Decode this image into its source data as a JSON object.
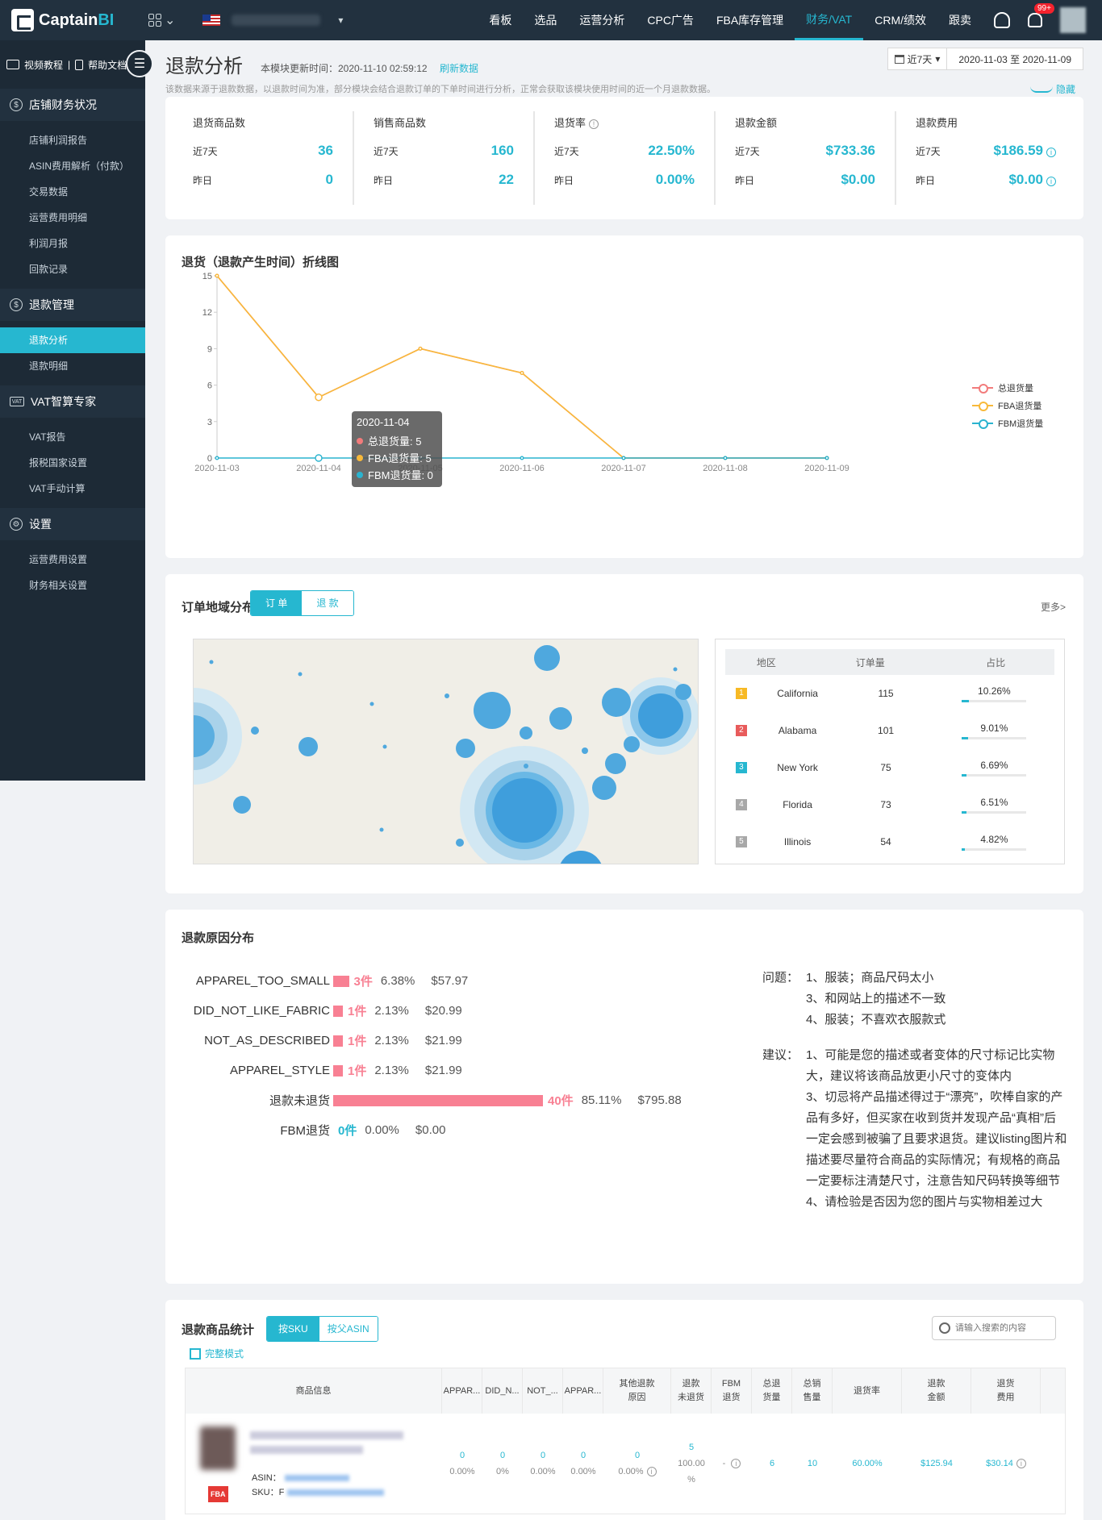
{
  "brand": {
    "name_a": "Captain",
    "name_b": "BI"
  },
  "topnav": {
    "items": [
      "看板",
      "选品",
      "运营分析",
      "CPC广告",
      "FBA库存管理",
      "财务/VAT",
      "CRM/绩效",
      "跟卖"
    ],
    "active": "财务/VAT",
    "badge": "99+"
  },
  "sidebar": {
    "video": "视频教程",
    "sep": "|",
    "docs": "帮助文档",
    "groups": [
      {
        "title": "店铺财务状况",
        "icon": "$",
        "items": [
          "店铺利润报告",
          "ASIN费用解析（付款）",
          "交易数据",
          "运营费用明细",
          "利润月报",
          "回款记录"
        ]
      },
      {
        "title": "退款管理",
        "icon": "$",
        "items": [
          "退款分析",
          "退款明细"
        ]
      },
      {
        "title": "VAT智算专家",
        "icon": "VAT",
        "items": [
          "VAT报告",
          "报税国家设置",
          "VAT手动计算"
        ]
      },
      {
        "title": "设置",
        "icon": "⚙",
        "items": [
          "运营费用设置",
          "财务相关设置"
        ]
      }
    ],
    "active_item": "退款分析"
  },
  "header": {
    "title": "退款分析",
    "update_label": "本模块更新时间：2020-11-10 02:59:12",
    "refresh": "刷新数据",
    "desc": "该数据来源于退款数据，以退款时间为准，部分模块会结合退款订单的下单时间进行分析，正常会获取该模块使用时间的近一个月退款数据。",
    "range_select": "近7天",
    "date_range": "2020-11-03 至 2020-11-09",
    "hide": "隐藏"
  },
  "stats": [
    {
      "name": "退货商品数",
      "label1": "近7天",
      "value1": "36",
      "label2": "昨日",
      "value2": "0",
      "info": false,
      "info_rows": false
    },
    {
      "name": "销售商品数",
      "label1": "近7天",
      "value1": "160",
      "label2": "昨日",
      "value2": "22",
      "info": false,
      "info_rows": false
    },
    {
      "name": "退货率",
      "label1": "近7天",
      "value1": "22.50%",
      "label2": "昨日",
      "value2": "0.00%",
      "info": true,
      "info_rows": false
    },
    {
      "name": "退款金额",
      "label1": "近7天",
      "value1": "$733.36",
      "label2": "昨日",
      "value2": "$0.00",
      "info": false,
      "info_rows": false
    },
    {
      "name": "退款费用",
      "label1": "近7天",
      "value1": "$186.59",
      "label2": "昨日",
      "value2": "$0.00",
      "info": false,
      "info_rows": true
    }
  ],
  "chart_data": {
    "type": "line",
    "title": "退货（退款产生时间）折线图",
    "categories": [
      "2020-11-03",
      "2020-11-04",
      "2020-11-05",
      "2020-11-06",
      "2020-11-07",
      "2020-11-08",
      "2020-11-09"
    ],
    "ylim": [
      0,
      15
    ],
    "yticks": [
      0,
      3,
      6,
      9,
      12,
      15
    ],
    "series": [
      {
        "name": "总退货量",
        "color": "#f27b7b",
        "values": [
          15,
          5,
          9,
          7,
          0,
          0,
          0
        ]
      },
      {
        "name": "FBA退货量",
        "color": "#f8b93a",
        "values": [
          15,
          5,
          9,
          7,
          0,
          0,
          0
        ]
      },
      {
        "name": "FBM退货量",
        "color": "#2ab3cf",
        "values": [
          0,
          0,
          0,
          0,
          0,
          0,
          0
        ]
      }
    ],
    "legend_position": "right",
    "grid": false,
    "tooltip": {
      "date": "2020-11-04",
      "rows": [
        "总退货量: 5",
        "FBA退货量: 5",
        "FBM退货量: 0"
      ]
    }
  },
  "geo": {
    "title": "订单地域分布",
    "tab_orders": "订 单",
    "tab_refunds": "退 款",
    "more": "更多>",
    "head": [
      "地区",
      "订单量",
      "占比"
    ],
    "rows": [
      {
        "rank": "1",
        "color": "#f7b924",
        "region": "California",
        "orders": "115",
        "pct": "10.26%",
        "frac": 0.1026
      },
      {
        "rank": "2",
        "color": "#e85b5b",
        "region": "Alabama",
        "orders": "101",
        "pct": "9.01%",
        "frac": 0.0901
      },
      {
        "rank": "3",
        "color": "#26b7d0",
        "region": "New York",
        "orders": "75",
        "pct": "6.69%",
        "frac": 0.0669
      },
      {
        "rank": "4",
        "color": "#a8a8a8",
        "region": "Florida",
        "orders": "73",
        "pct": "6.51%",
        "frac": 0.0651
      },
      {
        "rank": "5",
        "color": "#a8a8a8",
        "region": "Illinois",
        "orders": "54",
        "pct": "4.82%",
        "frac": 0.0482
      }
    ]
  },
  "reasons": {
    "title": "退款原因分布",
    "rows": [
      {
        "name": "APPAREL_TOO_SMALL",
        "count": 3,
        "count_label": "3件",
        "pct": "6.38%",
        "amount": "$57.97"
      },
      {
        "name": "DID_NOT_LIKE_FABRIC",
        "count": 1,
        "count_label": "1件",
        "pct": "2.13%",
        "amount": "$20.99"
      },
      {
        "name": "NOT_AS_DESCRIBED",
        "count": 1,
        "count_label": "1件",
        "pct": "2.13%",
        "amount": "$21.99"
      },
      {
        "name": "APPAREL_STYLE",
        "count": 1,
        "count_label": "1件",
        "pct": "2.13%",
        "amount": "$21.99"
      },
      {
        "name": "退款未退货",
        "count": 40,
        "count_label": "40件",
        "pct": "85.11%",
        "amount": "$795.88"
      },
      {
        "name": "FBM退货",
        "count": 0,
        "count_label": "0件",
        "pct": "0.00%",
        "amount": "$0.00"
      }
    ],
    "problem_label": "问题：",
    "problems": [
      "1、服装；商品尺码太小",
      "3、和网站上的描述不一致",
      "4、服装；不喜欢衣服款式"
    ],
    "advice_label": "建议：",
    "advice": [
      "1、可能是您的描述或者变体的尺寸标记比实物大，建议将该商品放更小尺寸的变体内",
      "3、切忌将产品描述得过于“漂亮”，吹棒自家的产品有多好，但买家在收到货并发现产品“真相”后一定会感到被骗了且要求退货。建议listing图片和描述要尽量符合商品的实际情况；有规格的商品一定要标注清楚尺寸，注意告知尺码转换等细节",
      "4、请检验是否因为您的图片与实物相差过大"
    ]
  },
  "table": {
    "title": "退款商品统计",
    "tab_sku": "按SKU",
    "tab_asin": "按父ASIN",
    "mode": "完整模式",
    "search_placeholder": "请输入搜索的内容",
    "headers": [
      "商品信息",
      "APPAR...",
      "DID_N...",
      "NOT_...",
      "APPAR...",
      "其他退款\n原因",
      "退款\n未退货",
      "FBM\n退货",
      "总退\n货量",
      "总销\n售量",
      "退货率",
      "退款\n金额",
      "退货\n费用"
    ],
    "row": {
      "asin_label": "ASIN：",
      "sku_label": "SKU：F",
      "fba": "FBA",
      "c1": "0",
      "c1s": "0.00%",
      "c2": "0",
      "c2s": "0%",
      "c3": "0",
      "c3s": "0.00%",
      "c4": "0",
      "c4s": "0.00%",
      "c5": "0",
      "c5s": "0.00%",
      "c6": "5",
      "c6s": "100.00",
      "c6p": "%",
      "c7": "-",
      "c8": "6",
      "c9": "10",
      "c10": "60.00%",
      "c11": "$125.94",
      "c12": "$30.14"
    }
  }
}
